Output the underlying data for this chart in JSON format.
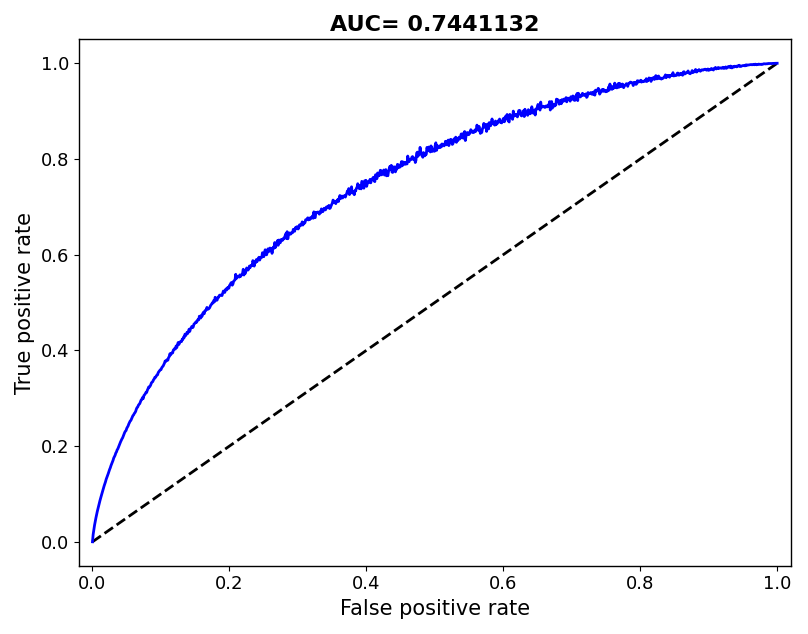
{
  "title": "AUC= 0.7441132",
  "xlabel": "False positive rate",
  "ylabel": "True positive rate",
  "auc": 0.7441132,
  "roc_color": "#0000FF",
  "diagonal_color": "#000000",
  "line_width": 2.0,
  "diagonal_linewidth": 2.0,
  "xlim": [
    -0.02,
    1.02
  ],
  "ylim": [
    -0.05,
    1.05
  ],
  "xticks": [
    0.0,
    0.2,
    0.4,
    0.6,
    0.8,
    1.0
  ],
  "yticks": [
    0.0,
    0.2,
    0.4,
    0.6,
    0.8,
    1.0
  ],
  "title_fontsize": 16,
  "axis_label_fontsize": 15,
  "tick_fontsize": 13,
  "background_color": "#ffffff",
  "title_fontweight": "bold"
}
